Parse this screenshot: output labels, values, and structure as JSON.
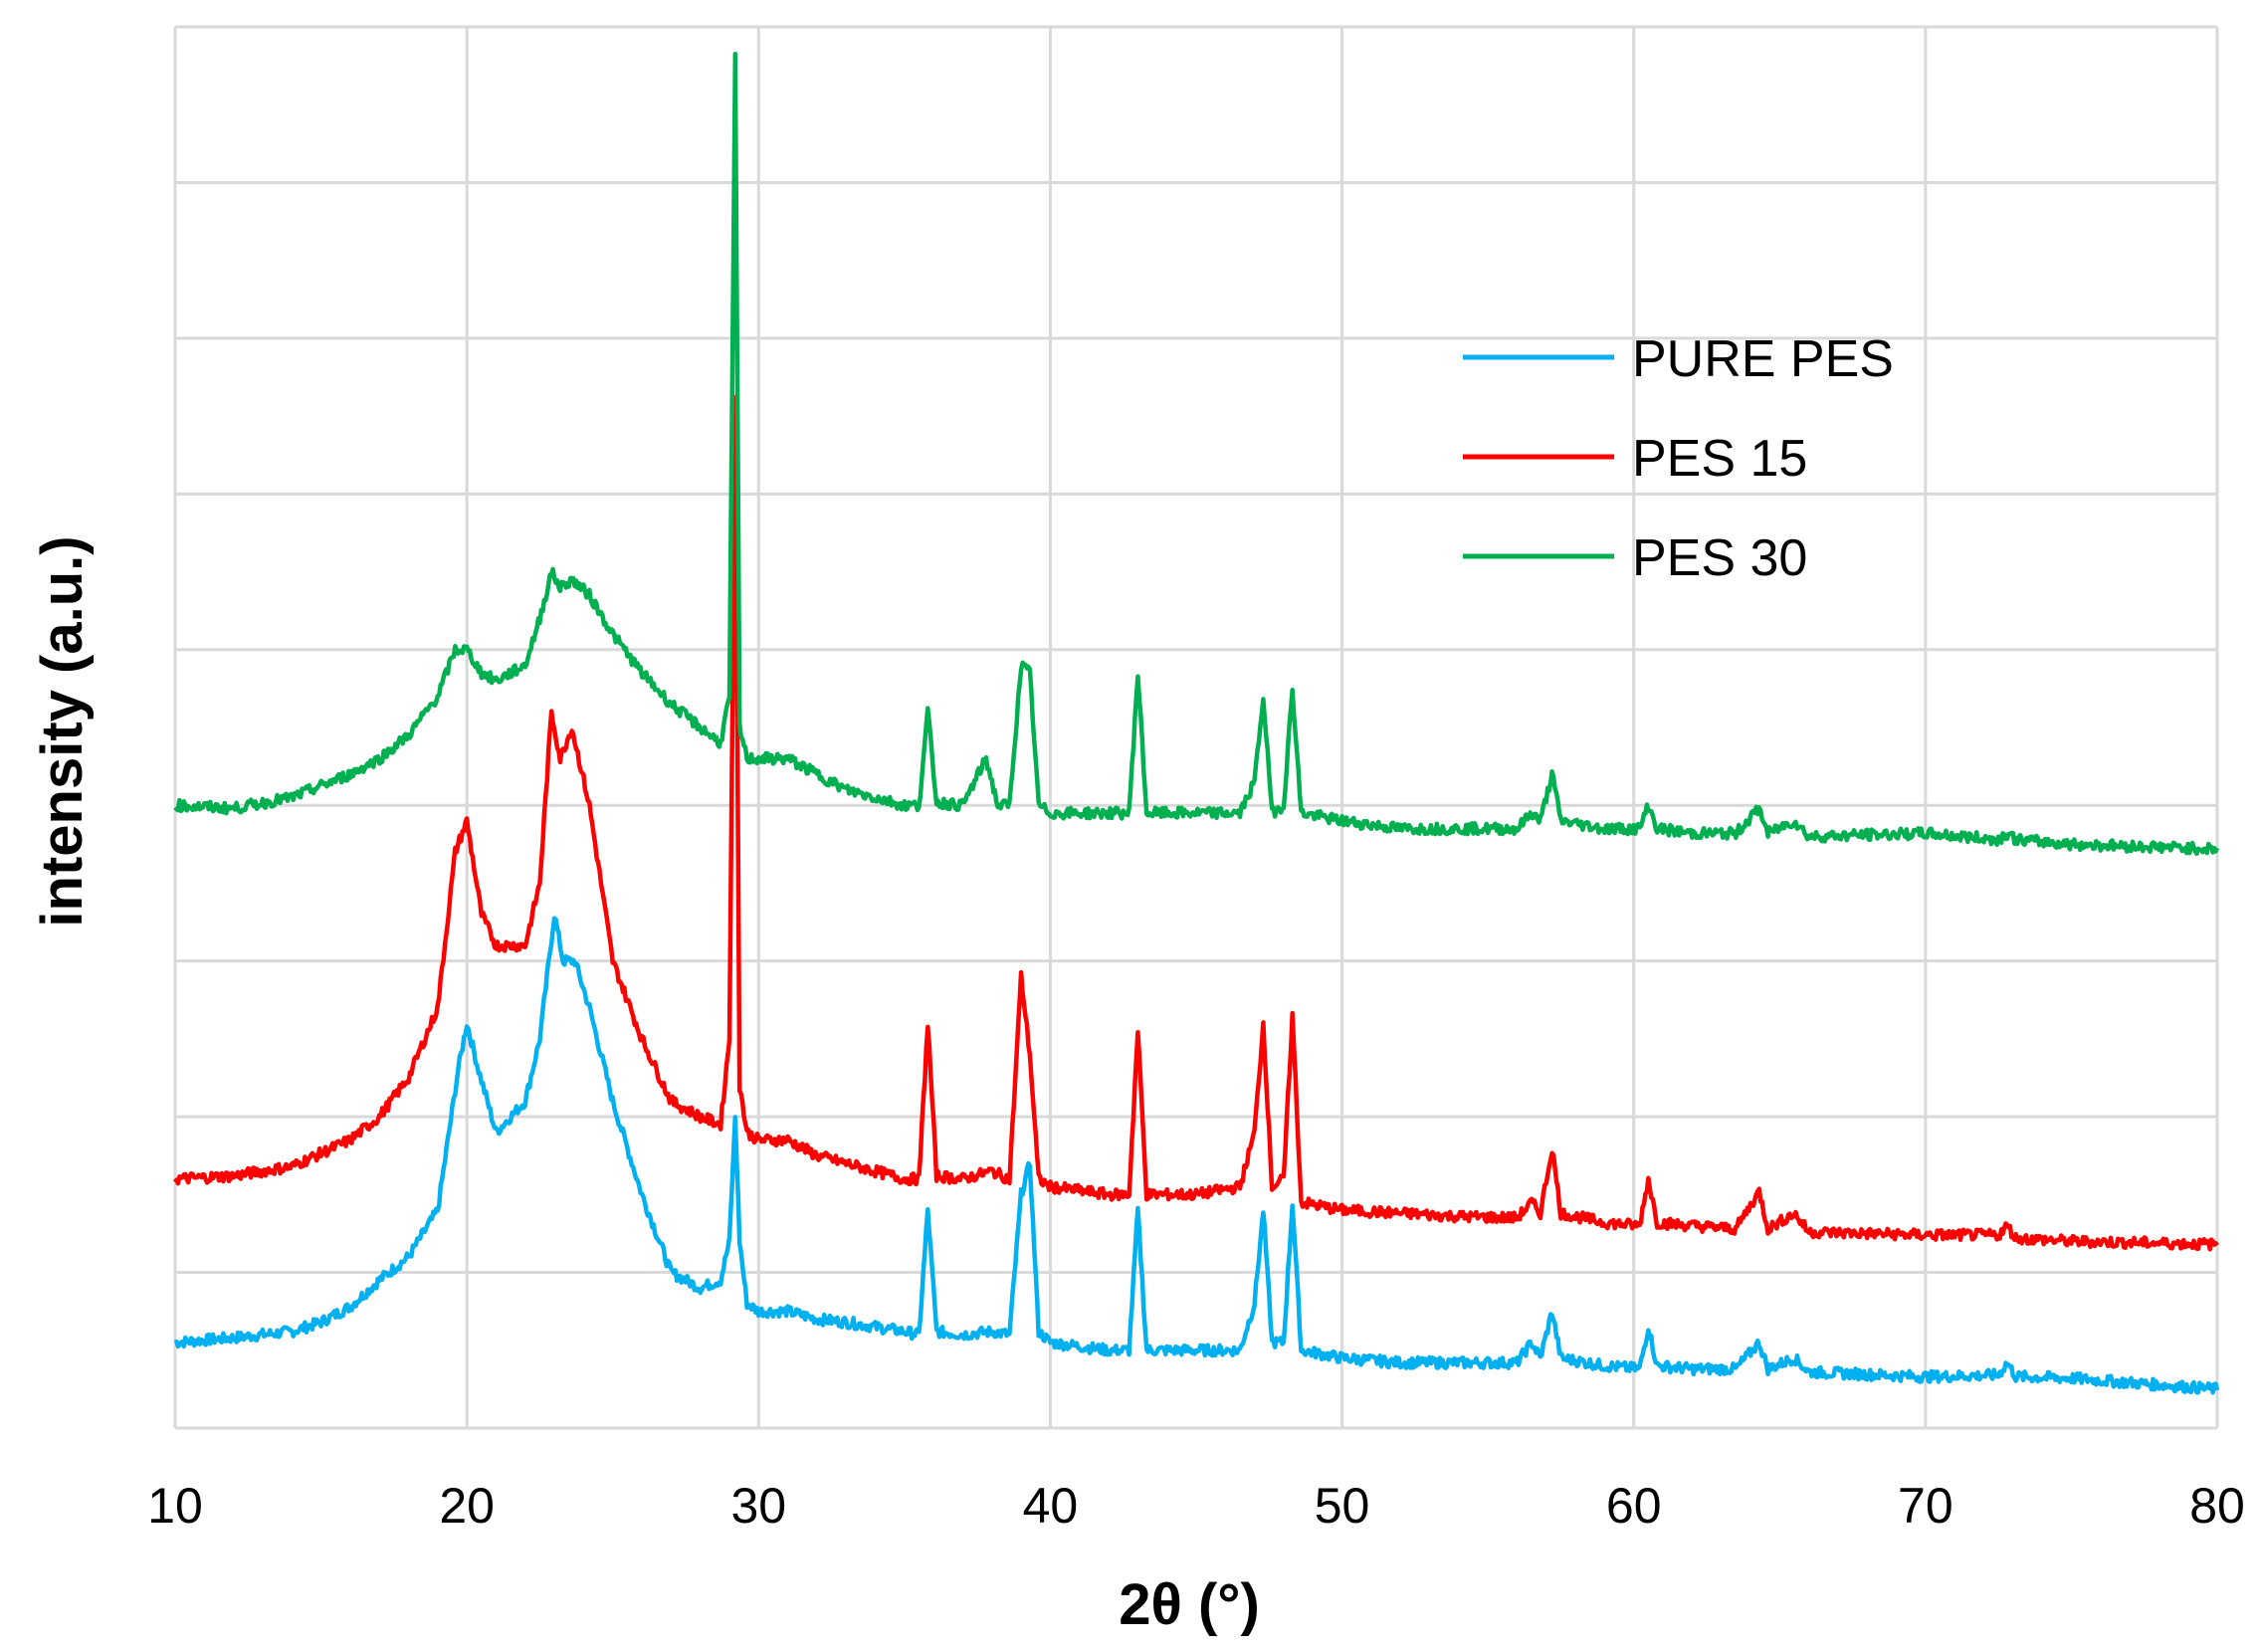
{
  "chart_data": {
    "type": "line",
    "title": "",
    "xlabel": "2θ (°)",
    "ylabel": "intensity (a.u.)",
    "xlim": [
      10,
      80
    ],
    "ylim": [
      0,
      9
    ],
    "x_ticks": [
      "10",
      "20",
      "30",
      "40",
      "50",
      "60",
      "70",
      "80"
    ],
    "y_ticks_labeled": false,
    "grid": true,
    "legend_position": "upper-right",
    "series": [
      {
        "name": "PURE PES",
        "color": "#00b0f0",
        "points": [
          [
            10,
            0.55
          ],
          [
            12,
            0.58
          ],
          [
            14,
            0.62
          ],
          [
            15,
            0.68
          ],
          [
            16,
            0.78
          ],
          [
            17,
            0.95
          ],
          [
            18,
            1.1
          ],
          [
            19,
            1.4
          ],
          [
            19.7,
            2.3
          ],
          [
            20,
            2.6
          ],
          [
            20.4,
            2.3
          ],
          [
            21,
            1.9
          ],
          [
            22,
            2.1
          ],
          [
            22.5,
            2.5
          ],
          [
            23,
            3.3
          ],
          [
            23.3,
            3.0
          ],
          [
            23.7,
            3.0
          ],
          [
            24.2,
            2.7
          ],
          [
            25,
            2.1
          ],
          [
            26,
            1.5
          ],
          [
            27,
            1.0
          ],
          [
            28,
            0.9
          ],
          [
            28.7,
            0.95
          ],
          [
            29.0,
            1.2
          ],
          [
            29.2,
            2.0
          ],
          [
            29.35,
            1.2
          ],
          [
            29.6,
            0.8
          ],
          [
            30,
            0.75
          ],
          [
            31,
            0.75
          ],
          [
            32,
            0.7
          ],
          [
            33,
            0.68
          ],
          [
            34,
            0.65
          ],
          [
            35,
            0.62
          ],
          [
            35.5,
            0.6
          ],
          [
            35.8,
            1.4
          ],
          [
            36.1,
            0.62
          ],
          [
            37,
            0.6
          ],
          [
            38,
            0.62
          ],
          [
            38.6,
            0.6
          ],
          [
            39.0,
            1.5
          ],
          [
            39.3,
            1.7
          ],
          [
            39.6,
            0.62
          ],
          [
            40,
            0.55
          ],
          [
            42,
            0.5
          ],
          [
            42.7,
            0.5
          ],
          [
            43.0,
            1.4
          ],
          [
            43.3,
            0.5
          ],
          [
            45,
            0.5
          ],
          [
            46.5,
            0.5
          ],
          [
            47,
            0.8
          ],
          [
            47.3,
            1.4
          ],
          [
            47.6,
            0.55
          ],
          [
            48.0,
            0.55
          ],
          [
            48.3,
            1.45
          ],
          [
            48.6,
            0.5
          ],
          [
            50,
            0.45
          ],
          [
            52,
            0.42
          ],
          [
            54,
            0.42
          ],
          [
            56,
            0.42
          ],
          [
            56.5,
            0.55
          ],
          [
            56.8,
            0.45
          ],
          [
            57.2,
            0.75
          ],
          [
            57.5,
            0.45
          ],
          [
            59,
            0.4
          ],
          [
            60.2,
            0.38
          ],
          [
            60.5,
            0.65
          ],
          [
            60.8,
            0.4
          ],
          [
            62,
            0.38
          ],
          [
            63.5,
            0.38
          ],
          [
            64.3,
            0.55
          ],
          [
            64.6,
            0.38
          ],
          [
            65.5,
            0.45
          ],
          [
            66,
            0.36
          ],
          [
            70,
            0.33
          ],
          [
            72.5,
            0.34
          ],
          [
            72.8,
            0.42
          ],
          [
            73.1,
            0.33
          ],
          [
            75,
            0.32
          ],
          [
            80,
            0.25
          ]
        ]
      },
      {
        "name": "PES 15",
        "color": "#ff0000",
        "points": [
          [
            10,
            1.6
          ],
          [
            12,
            1.62
          ],
          [
            14,
            1.68
          ],
          [
            16,
            1.85
          ],
          [
            17,
            2.0
          ],
          [
            18,
            2.25
          ],
          [
            19,
            2.7
          ],
          [
            19.6,
            3.7
          ],
          [
            20,
            3.9
          ],
          [
            20.5,
            3.3
          ],
          [
            21,
            3.1
          ],
          [
            22,
            3.1
          ],
          [
            22.5,
            3.5
          ],
          [
            22.9,
            4.6
          ],
          [
            23.2,
            4.3
          ],
          [
            23.6,
            4.5
          ],
          [
            24.2,
            4.0
          ],
          [
            25,
            3.0
          ],
          [
            26,
            2.5
          ],
          [
            27,
            2.1
          ],
          [
            28,
            2.0
          ],
          [
            28.7,
            1.95
          ],
          [
            29.0,
            2.5
          ],
          [
            29.2,
            6.6
          ],
          [
            29.35,
            2.2
          ],
          [
            29.6,
            1.9
          ],
          [
            30,
            1.85
          ],
          [
            31,
            1.85
          ],
          [
            32,
            1.75
          ],
          [
            33,
            1.7
          ],
          [
            34,
            1.65
          ],
          [
            35,
            1.6
          ],
          [
            35.5,
            1.6
          ],
          [
            35.8,
            2.6
          ],
          [
            36.1,
            1.62
          ],
          [
            37,
            1.6
          ],
          [
            38,
            1.65
          ],
          [
            38.6,
            1.6
          ],
          [
            39.0,
            2.9
          ],
          [
            39.3,
            2.4
          ],
          [
            39.6,
            1.6
          ],
          [
            40,
            1.55
          ],
          [
            42,
            1.5
          ],
          [
            42.7,
            1.5
          ],
          [
            43.0,
            2.55
          ],
          [
            43.3,
            1.5
          ],
          [
            45,
            1.5
          ],
          [
            46.5,
            1.55
          ],
          [
            47,
            1.9
          ],
          [
            47.3,
            2.6
          ],
          [
            47.6,
            1.55
          ],
          [
            48.0,
            1.6
          ],
          [
            48.3,
            2.65
          ],
          [
            48.6,
            1.45
          ],
          [
            50,
            1.4
          ],
          [
            52,
            1.38
          ],
          [
            54,
            1.36
          ],
          [
            56,
            1.35
          ],
          [
            56.5,
            1.45
          ],
          [
            56.8,
            1.38
          ],
          [
            57.2,
            1.8
          ],
          [
            57.5,
            1.38
          ],
          [
            59,
            1.32
          ],
          [
            60.2,
            1.3
          ],
          [
            60.5,
            1.6
          ],
          [
            60.8,
            1.32
          ],
          [
            62,
            1.3
          ],
          [
            63.5,
            1.28
          ],
          [
            64.3,
            1.52
          ],
          [
            64.6,
            1.28
          ],
          [
            65.5,
            1.38
          ],
          [
            66,
            1.26
          ],
          [
            70,
            1.24
          ],
          [
            72.5,
            1.24
          ],
          [
            72.8,
            1.3
          ],
          [
            73.1,
            1.22
          ],
          [
            75,
            1.2
          ],
          [
            80,
            1.18
          ]
        ]
      },
      {
        "name": "PES 30",
        "color": "#00b050",
        "points": [
          [
            10,
            4.0
          ],
          [
            12,
            3.98
          ],
          [
            14,
            4.05
          ],
          [
            16,
            4.2
          ],
          [
            17,
            4.3
          ],
          [
            18,
            4.45
          ],
          [
            19,
            4.7
          ],
          [
            19.6,
            5.0
          ],
          [
            20,
            5.0
          ],
          [
            20.5,
            4.85
          ],
          [
            21,
            4.8
          ],
          [
            22,
            4.9
          ],
          [
            22.5,
            5.2
          ],
          [
            22.9,
            5.5
          ],
          [
            23.2,
            5.4
          ],
          [
            23.6,
            5.45
          ],
          [
            24.2,
            5.35
          ],
          [
            25,
            5.1
          ],
          [
            26,
            4.85
          ],
          [
            27,
            4.65
          ],
          [
            28,
            4.5
          ],
          [
            28.7,
            4.4
          ],
          [
            29.0,
            4.7
          ],
          [
            29.2,
            8.8
          ],
          [
            29.35,
            4.5
          ],
          [
            29.6,
            4.3
          ],
          [
            30,
            4.3
          ],
          [
            31,
            4.3
          ],
          [
            32,
            4.2
          ],
          [
            33,
            4.1
          ],
          [
            34,
            4.05
          ],
          [
            35,
            4.0
          ],
          [
            35.5,
            4.0
          ],
          [
            35.8,
            4.6
          ],
          [
            36.1,
            4.02
          ],
          [
            37,
            4.0
          ],
          [
            37.8,
            4.3
          ],
          [
            38.2,
            4.0
          ],
          [
            38.6,
            4.0
          ],
          [
            39.0,
            4.9
          ],
          [
            39.3,
            4.85
          ],
          [
            39.6,
            4.0
          ],
          [
            40,
            3.95
          ],
          [
            42,
            3.95
          ],
          [
            42.7,
            3.95
          ],
          [
            43.0,
            4.85
          ],
          [
            43.3,
            3.95
          ],
          [
            45,
            3.95
          ],
          [
            46.5,
            3.95
          ],
          [
            47,
            4.15
          ],
          [
            47.3,
            4.7
          ],
          [
            47.6,
            3.95
          ],
          [
            48.0,
            4.0
          ],
          [
            48.3,
            4.75
          ],
          [
            48.6,
            3.95
          ],
          [
            50,
            3.9
          ],
          [
            52,
            3.85
          ],
          [
            54,
            3.85
          ],
          [
            56,
            3.85
          ],
          [
            56.5,
            3.95
          ],
          [
            56.8,
            3.9
          ],
          [
            57.2,
            4.2
          ],
          [
            57.5,
            3.9
          ],
          [
            59,
            3.85
          ],
          [
            60.2,
            3.85
          ],
          [
            60.5,
            4.0
          ],
          [
            60.8,
            3.85
          ],
          [
            62,
            3.82
          ],
          [
            63.5,
            3.82
          ],
          [
            64.3,
            3.98
          ],
          [
            64.6,
            3.82
          ],
          [
            65.5,
            3.9
          ],
          [
            66,
            3.8
          ],
          [
            70,
            3.82
          ],
          [
            72.5,
            3.78
          ],
          [
            72.8,
            3.82
          ],
          [
            73.1,
            3.78
          ],
          [
            75,
            3.75
          ],
          [
            80,
            3.72
          ]
        ]
      }
    ]
  }
}
